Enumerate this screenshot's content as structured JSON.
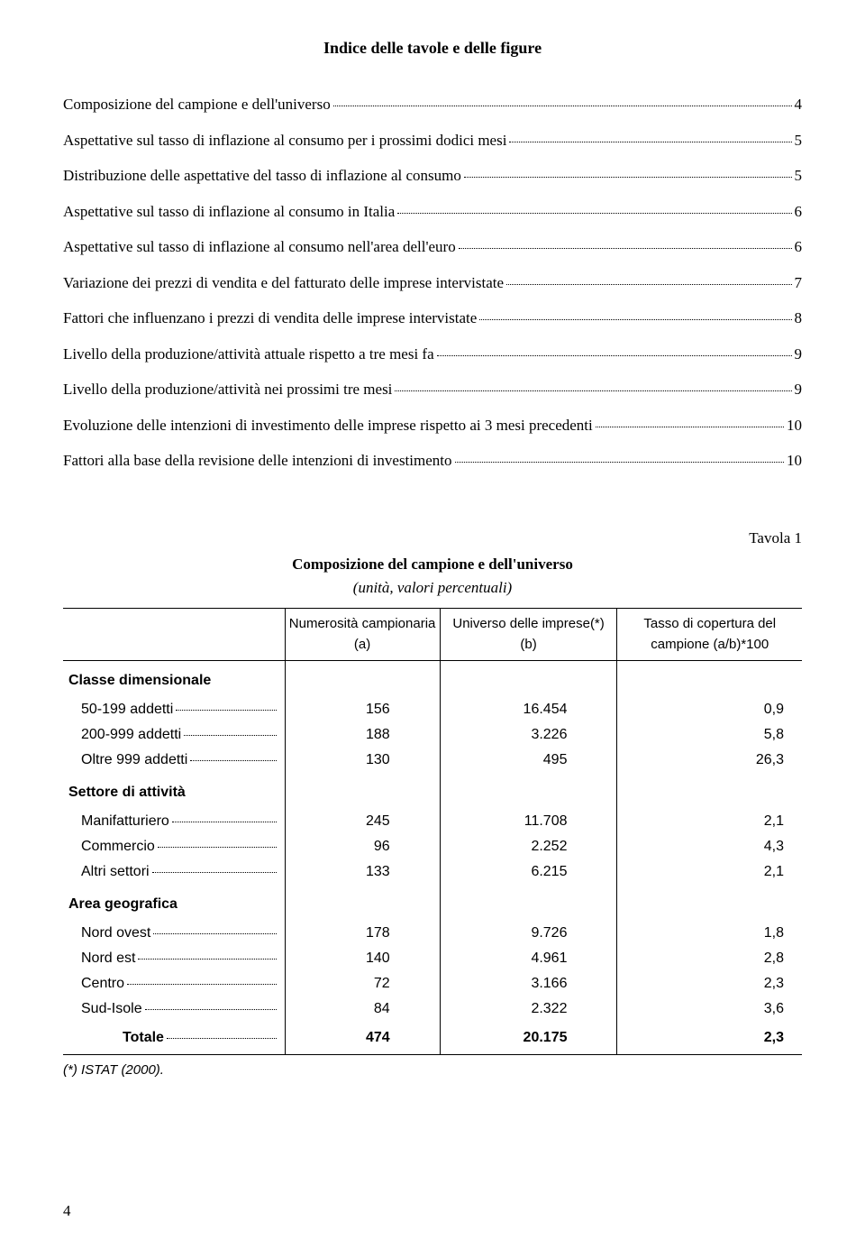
{
  "title": "Indice delle tavole e delle figure",
  "toc": [
    {
      "label": "Composizione del campione e dell'universo",
      "page": "4"
    },
    {
      "label": "Aspettative sul tasso di inflazione al consumo per i prossimi dodici mesi",
      "page": "5"
    },
    {
      "label": "Distribuzione delle aspettative del tasso di inflazione al consumo",
      "page": "5"
    },
    {
      "label": "Aspettative sul tasso di inflazione al consumo in Italia",
      "page": "6"
    },
    {
      "label": "Aspettative sul tasso di inflazione al consumo nell'area dell'euro",
      "page": "6"
    },
    {
      "label": "Variazione dei prezzi di vendita e del fatturato delle imprese intervistate",
      "page": "7"
    },
    {
      "label": "Fattori che influenzano i prezzi di vendita delle imprese intervistate",
      "page": "8"
    },
    {
      "label": "Livello della produzione/attività attuale rispetto a tre mesi fa",
      "page": "9"
    },
    {
      "label": "Livello della produzione/attività nei prossimi tre mesi",
      "page": "9"
    },
    {
      "label": "Evoluzione delle intenzioni di investimento delle imprese rispetto ai 3 mesi precedenti",
      "page": "10"
    },
    {
      "label": "Fattori alla base della revisione delle intenzioni di investimento",
      "page": "10"
    }
  ],
  "tavola_label": "Tavola 1",
  "table_title": "Composizione del campione e dell'universo",
  "table_subtitle": "(unità, valori percentuali)",
  "headers": {
    "col1": "",
    "col2": "Numerosità campionaria (a)",
    "col3": "Universo delle imprese(*) (b)",
    "col4": "Tasso di copertura del campione (a/b)*100"
  },
  "sections": [
    {
      "name": "Classe dimensionale",
      "rows": [
        {
          "label": "50-199 addetti",
          "a": "156",
          "b": "16.454",
          "c": "0,9"
        },
        {
          "label": "200-999 addetti",
          "a": "188",
          "b": "3.226",
          "c": "5,8"
        },
        {
          "label": "Oltre 999 addetti",
          "a": "130",
          "b": "495",
          "c": "26,3"
        }
      ]
    },
    {
      "name": "Settore di attività",
      "rows": [
        {
          "label": "Manifatturiero",
          "a": "245",
          "b": "11.708",
          "c": "2,1"
        },
        {
          "label": "Commercio",
          "a": "96",
          "b": "2.252",
          "c": "4,3"
        },
        {
          "label": "Altri settori",
          "a": "133",
          "b": "6.215",
          "c": "2,1"
        }
      ]
    },
    {
      "name": "Area geografica",
      "rows": [
        {
          "label": "Nord ovest",
          "a": "178",
          "b": "9.726",
          "c": "1,8"
        },
        {
          "label": "Nord est",
          "a": "140",
          "b": "4.961",
          "c": "2,8"
        },
        {
          "label": "Centro",
          "a": "72",
          "b": "3.166",
          "c": "2,3"
        },
        {
          "label": "Sud-Isole",
          "a": "84",
          "b": "2.322",
          "c": "3,6"
        }
      ]
    }
  ],
  "totale": {
    "label": "Totale",
    "a": "474",
    "b": "20.175",
    "c": "2,3"
  },
  "footnote": "(*) ISTAT (2000).",
  "page_number": "4"
}
